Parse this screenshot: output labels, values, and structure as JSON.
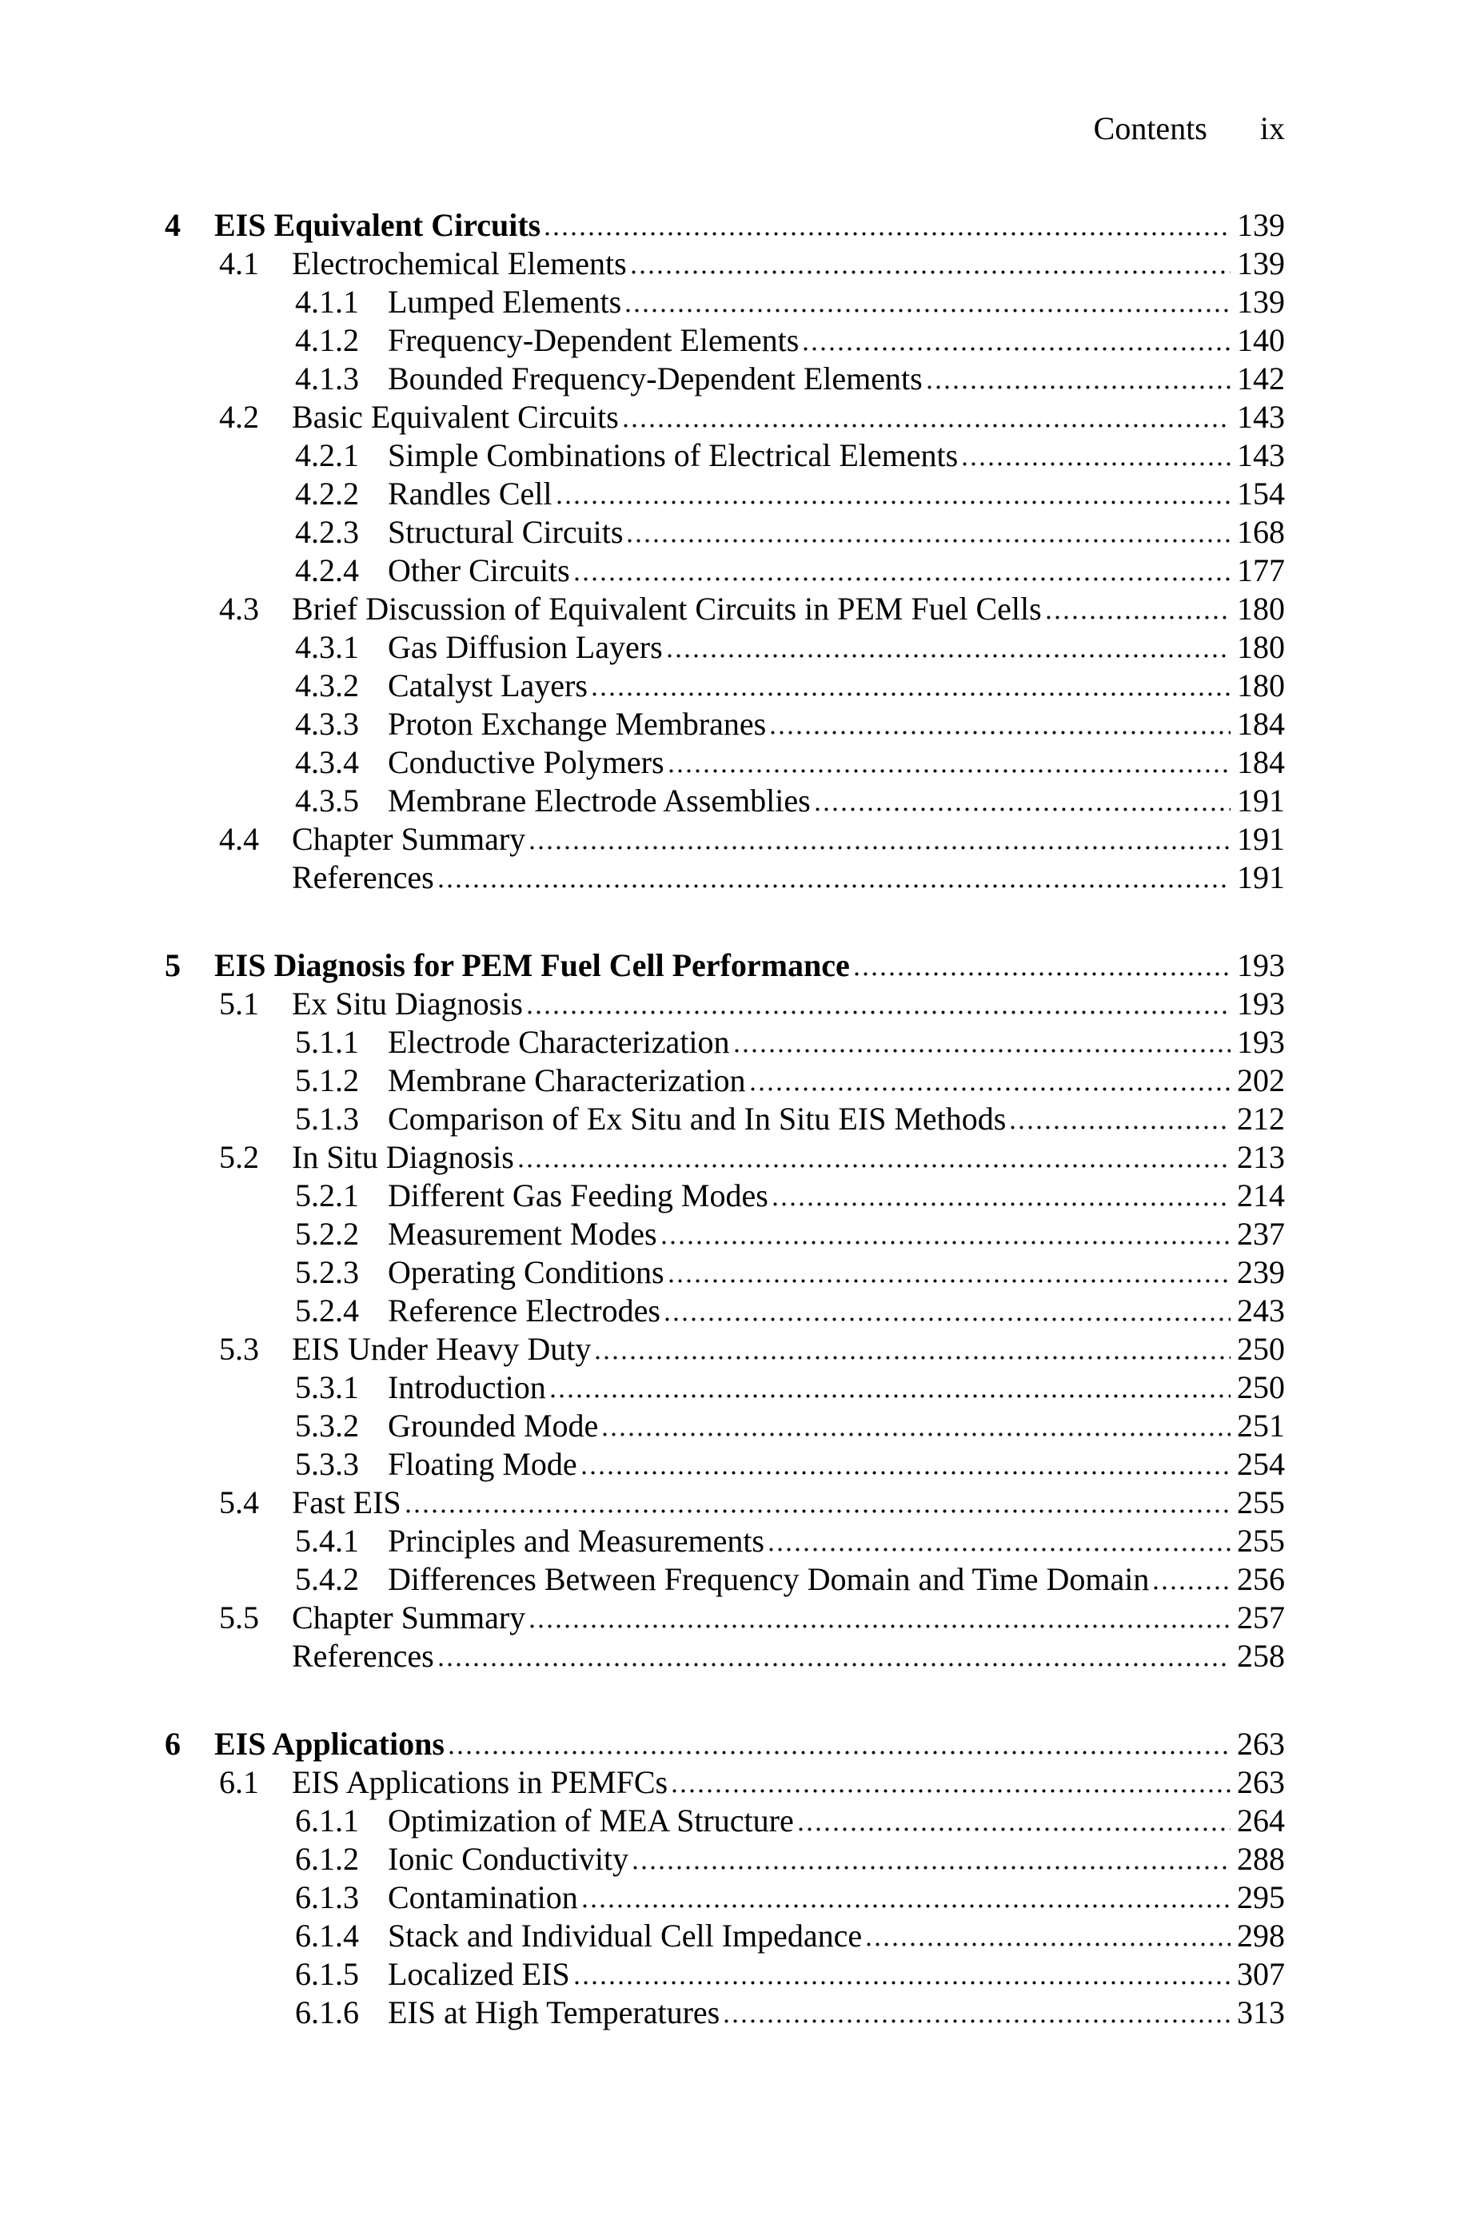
{
  "page": {
    "background_color": "#ffffff",
    "text_color": "#000000"
  },
  "header": {
    "title": "Contents",
    "page_number": "ix"
  },
  "toc": {
    "items": [
      {
        "level": "chapter",
        "number": "4",
        "title": "EIS Equivalent Circuits",
        "page": "139"
      },
      {
        "level": "section",
        "number": "4.1",
        "title": "Electrochemical Elements",
        "page": "139"
      },
      {
        "level": "subsection",
        "number": "4.1.1",
        "title": "Lumped Elements",
        "page": "139"
      },
      {
        "level": "subsection",
        "number": "4.1.2",
        "title": "Frequency-Dependent Elements",
        "page": "140"
      },
      {
        "level": "subsection",
        "number": "4.1.3",
        "title": "Bounded Frequency-Dependent Elements",
        "page": "142"
      },
      {
        "level": "section",
        "number": "4.2",
        "title": "Basic Equivalent Circuits",
        "page": "143"
      },
      {
        "level": "subsection",
        "number": "4.2.1",
        "title": "Simple Combinations of Electrical Elements",
        "page": "143"
      },
      {
        "level": "subsection",
        "number": "4.2.2",
        "title": "Randles Cell",
        "page": "154"
      },
      {
        "level": "subsection",
        "number": "4.2.3",
        "title": "Structural Circuits",
        "page": "168"
      },
      {
        "level": "subsection",
        "number": "4.2.4",
        "title": "Other Circuits",
        "page": "177"
      },
      {
        "level": "section",
        "number": "4.3",
        "title": "Brief Discussion of Equivalent Circuits in PEM Fuel Cells",
        "page": "180"
      },
      {
        "level": "subsection",
        "number": "4.3.1",
        "title": "Gas Diffusion Layers",
        "page": "180"
      },
      {
        "level": "subsection",
        "number": "4.3.2",
        "title": "Catalyst Layers",
        "page": "180"
      },
      {
        "level": "subsection",
        "number": "4.3.3",
        "title": "Proton Exchange Membranes",
        "page": "184"
      },
      {
        "level": "subsection",
        "number": "4.3.4",
        "title": "Conductive Polymers",
        "page": "184"
      },
      {
        "level": "subsection",
        "number": "4.3.5",
        "title": "Membrane Electrode Assemblies",
        "page": "191"
      },
      {
        "level": "section",
        "number": "4.4",
        "title": "Chapter Summary",
        "page": "191"
      },
      {
        "level": "references",
        "number": "",
        "title": "References",
        "page": "191"
      },
      {
        "level": "chapter",
        "number": "5",
        "title": "EIS Diagnosis for PEM Fuel Cell Performance",
        "page": "193"
      },
      {
        "level": "section",
        "number": "5.1",
        "title": "Ex Situ Diagnosis",
        "page": "193"
      },
      {
        "level": "subsection",
        "number": "5.1.1",
        "title": "Electrode Characterization",
        "page": "193"
      },
      {
        "level": "subsection",
        "number": "5.1.2",
        "title": "Membrane Characterization",
        "page": "202"
      },
      {
        "level": "subsection",
        "number": "5.1.3",
        "title": "Comparison of Ex Situ and In Situ EIS Methods",
        "page": "212"
      },
      {
        "level": "section",
        "number": "5.2",
        "title": "In Situ Diagnosis",
        "page": "213"
      },
      {
        "level": "subsection",
        "number": "5.2.1",
        "title": "Different Gas Feeding Modes",
        "page": "214"
      },
      {
        "level": "subsection",
        "number": "5.2.2",
        "title": "Measurement Modes",
        "page": "237"
      },
      {
        "level": "subsection",
        "number": "5.2.3",
        "title": "Operating Conditions",
        "page": "239"
      },
      {
        "level": "subsection",
        "number": "5.2.4",
        "title": "Reference Electrodes",
        "page": "243"
      },
      {
        "level": "section",
        "number": "5.3",
        "title": "EIS Under Heavy Duty",
        "page": "250"
      },
      {
        "level": "subsection",
        "number": "5.3.1",
        "title": "Introduction",
        "page": "250"
      },
      {
        "level": "subsection",
        "number": "5.3.2",
        "title": "Grounded Mode",
        "page": "251"
      },
      {
        "level": "subsection",
        "number": "5.3.3",
        "title": "Floating Mode",
        "page": "254"
      },
      {
        "level": "section",
        "number": "5.4",
        "title": "Fast EIS",
        "page": "255"
      },
      {
        "level": "subsection",
        "number": "5.4.1",
        "title": "Principles and Measurements",
        "page": "255"
      },
      {
        "level": "subsection",
        "number": "5.4.2",
        "title": "Differences Between Frequency Domain and Time Domain",
        "page": "256"
      },
      {
        "level": "section",
        "number": "5.5",
        "title": "Chapter Summary",
        "page": "257"
      },
      {
        "level": "references",
        "number": "",
        "title": "References",
        "page": "258"
      },
      {
        "level": "chapter",
        "number": "6",
        "title": "EIS Applications",
        "page": "263"
      },
      {
        "level": "section",
        "number": "6.1",
        "title": "EIS Applications in PEMFCs",
        "page": "263"
      },
      {
        "level": "subsection",
        "number": "6.1.1",
        "title": "Optimization of MEA Structure",
        "page": "264"
      },
      {
        "level": "subsection",
        "number": "6.1.2",
        "title": "Ionic Conductivity",
        "page": "288"
      },
      {
        "level": "subsection",
        "number": "6.1.3",
        "title": "Contamination",
        "page": "295"
      },
      {
        "level": "subsection",
        "number": "6.1.4",
        "title": "Stack and Individual Cell Impedance",
        "page": "298"
      },
      {
        "level": "subsection",
        "number": "6.1.5",
        "title": "Localized EIS",
        "page": "307"
      },
      {
        "level": "subsection",
        "number": "6.1.6",
        "title": "EIS at High Temperatures",
        "page": "313"
      }
    ]
  }
}
